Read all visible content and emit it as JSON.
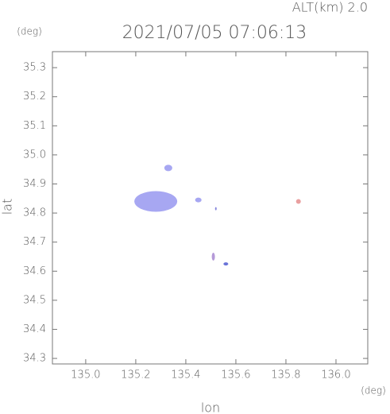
{
  "chart_data": {
    "type": "scatter",
    "title": "2021/07/05 07:06:13",
    "subtitle": "ALT(km) 2.0",
    "x_label": "lon",
    "y_label": "lat",
    "x_unit": "(deg)",
    "y_unit": "(deg)",
    "x": [
      135.28,
      135.33,
      135.45,
      135.85,
      135.51,
      135.56,
      135.52
    ],
    "y": [
      34.84,
      34.955,
      34.845,
      34.84,
      34.65,
      34.625,
      34.815
    ],
    "colors": [
      "#a7a7f2",
      "#a7a7f2",
      "#a7a7f2",
      "#e9a0a0",
      "#b59ad8",
      "#6a74d8",
      "#8888dd"
    ],
    "xlim": [
      134.867,
      136.127
    ],
    "ylim": [
      34.281,
      35.355
    ],
    "xticks": [
      {
        "value": 135.0,
        "label": "135.0"
      },
      135.2,
      135.4,
      135.6,
      135.8,
      {
        "value": 136.0,
        "label": "136.0"
      }
    ],
    "yticks": [
      34.3,
      34.4,
      34.5,
      34.6,
      34.7,
      34.8,
      34.9,
      {
        "value": 35.0,
        "label": "35.0"
      },
      35.1,
      35.2,
      35.3
    ]
  }
}
